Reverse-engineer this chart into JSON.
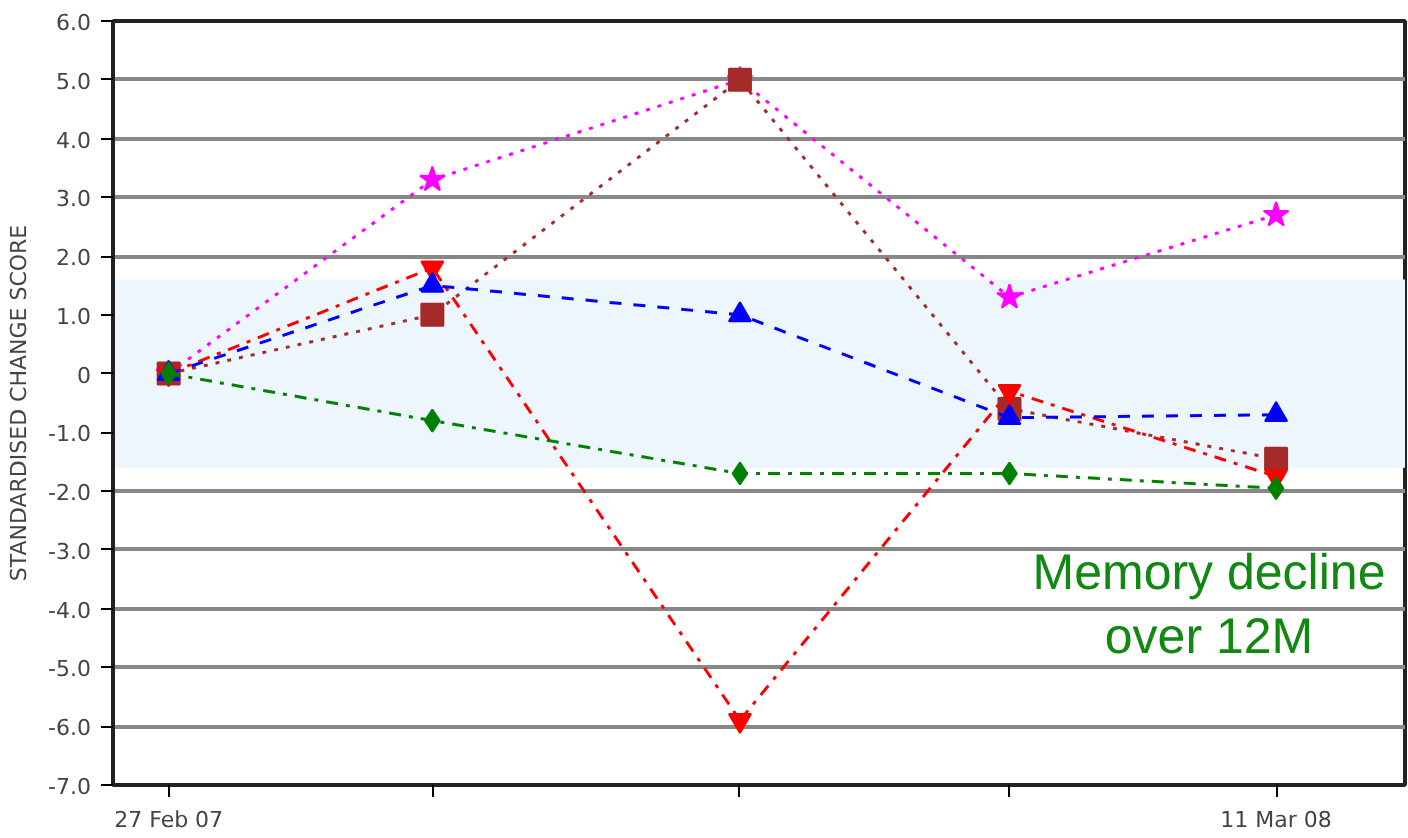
{
  "chart_data": {
    "type": "line",
    "ylabel": "STANDARDISED CHANGE SCORE",
    "x": [
      "2007-02-27",
      "2007-05-28",
      "2007-09-10",
      "2007-12-11",
      "2008-03-11"
    ],
    "xlim": [
      "2007-02-08",
      "2008-04-24"
    ],
    "xticks": [
      {
        "value": "2007-02-27",
        "label": "27 Feb 07"
      },
      {
        "value": "2007-05-28",
        "label": null
      },
      {
        "value": "2007-09-10",
        "label": null
      },
      {
        "value": "2007-12-11",
        "label": null
      },
      {
        "value": "2008-03-11",
        "label": "11 Mar 08"
      }
    ],
    "ylim": [
      -7,
      6
    ],
    "yticks": [
      {
        "value": -7,
        "label": "-7.0"
      },
      {
        "value": -6,
        "label": "-6.0"
      },
      {
        "value": -5,
        "label": "-5.0"
      },
      {
        "value": -4,
        "label": "-4.0"
      },
      {
        "value": -3,
        "label": "-3.0"
      },
      {
        "value": -2,
        "label": "-2.0"
      },
      {
        "value": -1,
        "label": "-1.0"
      },
      {
        "value": 0,
        "label": "0"
      },
      {
        "value": 1,
        "label": "1.0"
      },
      {
        "value": 2,
        "label": "2.0"
      },
      {
        "value": 3,
        "label": "3.0"
      },
      {
        "value": 4,
        "label": "4.0"
      },
      {
        "value": 5,
        "label": "5.0"
      },
      {
        "value": 6,
        "label": "6.0"
      }
    ],
    "grid": "y",
    "bands": [
      {
        "axis": "y",
        "from": -1.6,
        "to": 1.6,
        "label": null,
        "color": "#eef6fd"
      }
    ],
    "series": [
      {
        "color": "#ff00ff",
        "marker": "star",
        "line_style": "dotted",
        "values": [
          0,
          3.3,
          5.0,
          1.3,
          2.7
        ]
      },
      {
        "color": "#a52a2a",
        "marker": "square",
        "line_style": "dotted",
        "values": [
          0,
          1.0,
          5.0,
          -0.6,
          -1.45
        ]
      },
      {
        "color": "#ff0000",
        "marker": "triangle",
        "line_style": "dashdot",
        "values": [
          0,
          1.8,
          -5.9,
          -0.3,
          -1.75
        ]
      },
      {
        "color": "#0000ff",
        "marker": "triangle",
        "line_style": "dashed",
        "values": [
          0,
          1.5,
          1.0,
          -0.75,
          -0.7
        ]
      },
      {
        "color": "#008000",
        "marker": "diamond",
        "line_style": "dashdot",
        "values": [
          0,
          -0.8,
          -1.7,
          -1.7,
          -1.95
        ]
      }
    ],
    "annotations": [
      "Memory decline\nover 12M"
    ]
  }
}
